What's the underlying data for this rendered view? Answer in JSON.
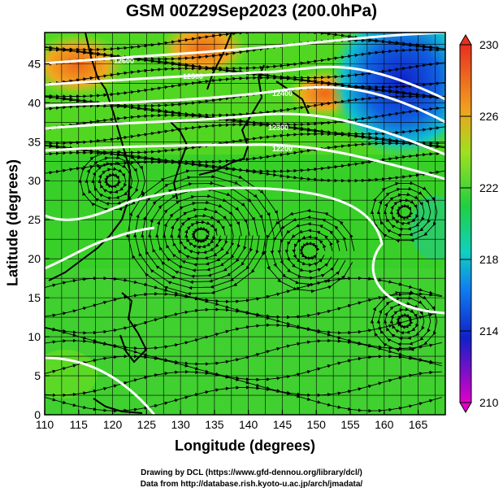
{
  "title": "GSM 00Z29Sep2023 (200.0hPa)",
  "x_label": "Longitude (degrees)",
  "y_label": "Latitude  (degrees)",
  "credits": [
    "Drawing by DCL (https://www.gfd-dennou.org/library/dcl/)",
    "Data from http://database.rish.kyoto-u.ac.jp/arch/jmadata/"
  ],
  "map": {
    "lon_range": [
      110,
      169
    ],
    "lat_range": [
      0,
      49
    ],
    "x_ticks": [
      "110",
      "115",
      "120",
      "125",
      "130",
      "135",
      "140",
      "145",
      "150",
      "155",
      "160",
      "165"
    ],
    "y_ticks": [
      "0",
      "5",
      "10",
      "15",
      "20",
      "25",
      "30",
      "35",
      "40",
      "45"
    ]
  },
  "colorbar": {
    "labels": [
      "230",
      "226",
      "222",
      "218",
      "214",
      "210"
    ],
    "range": [
      210,
      230
    ],
    "colors": [
      "#e800c8",
      "#1020c8",
      "#10c8f0",
      "#20e040",
      "#60e020",
      "#e8d020",
      "#e83020"
    ]
  },
  "contour_labels": [
    "12600",
    "12500",
    "12400",
    "12300",
    "12200"
  ],
  "colors": {
    "temp_warm": "#f08818",
    "temp_mid": "#40d830",
    "temp_cold": "#1030d8",
    "contour": "#ffffff",
    "grid": "#000000"
  }
}
